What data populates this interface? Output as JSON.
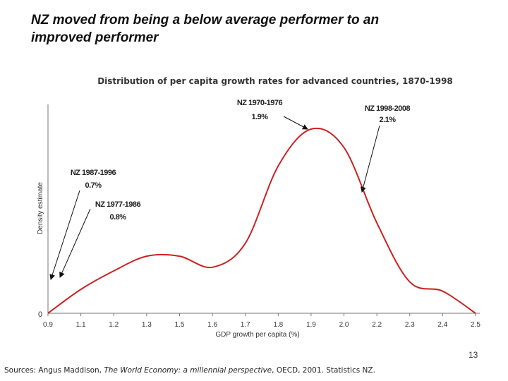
{
  "slide": {
    "title_line1": "NZ moved from being a below average performer to an",
    "title_line2": "improved performer",
    "page_number": "13",
    "sources": {
      "prefix": "Sources: Angus Maddison, ",
      "book": "The World Economy: a millennial perspective",
      "suffix": ", OECD, 2001. Statistics NZ."
    }
  },
  "colors": {
    "curve": "#cc2222",
    "axis": "#666666",
    "text": "#222222"
  },
  "chart_data": {
    "type": "line",
    "title": "Distribution of per capita growth rates for advanced countries, 1870-1998",
    "xlabel": "GDP growth per capita (%)",
    "ylabel": "Density estimate",
    "y_tick_labels": [
      "0"
    ],
    "x_tick_labels": [
      "0.9",
      "1.1",
      "1.2",
      "1.3",
      "1.5",
      "1.6",
      "1.7",
      "1.8",
      "1.9",
      "2.0",
      "2.2",
      "2.3",
      "2.4",
      "2.5"
    ],
    "grid": false,
    "series": [
      {
        "x": [
          0.9,
          1.1,
          1.2,
          1.3,
          1.5,
          1.6,
          1.7,
          1.8,
          1.9,
          2.0,
          2.2,
          2.3,
          2.4,
          2.5
        ],
        "y": [
          0,
          0.13,
          0.23,
          0.31,
          0.31,
          0.25,
          0.38,
          0.8,
          1.0,
          0.9,
          0.49,
          0.17,
          0.12,
          0
        ]
      }
    ],
    "annotations": [
      {
        "label": "NZ 1970-1976",
        "value": "1.9%"
      },
      {
        "label": "NZ 1998-2008",
        "value": "2.1%"
      },
      {
        "label": "NZ 1987-1996",
        "value": "0.7%"
      },
      {
        "label": "NZ 1977-1986",
        "value": "0.8%"
      }
    ]
  }
}
